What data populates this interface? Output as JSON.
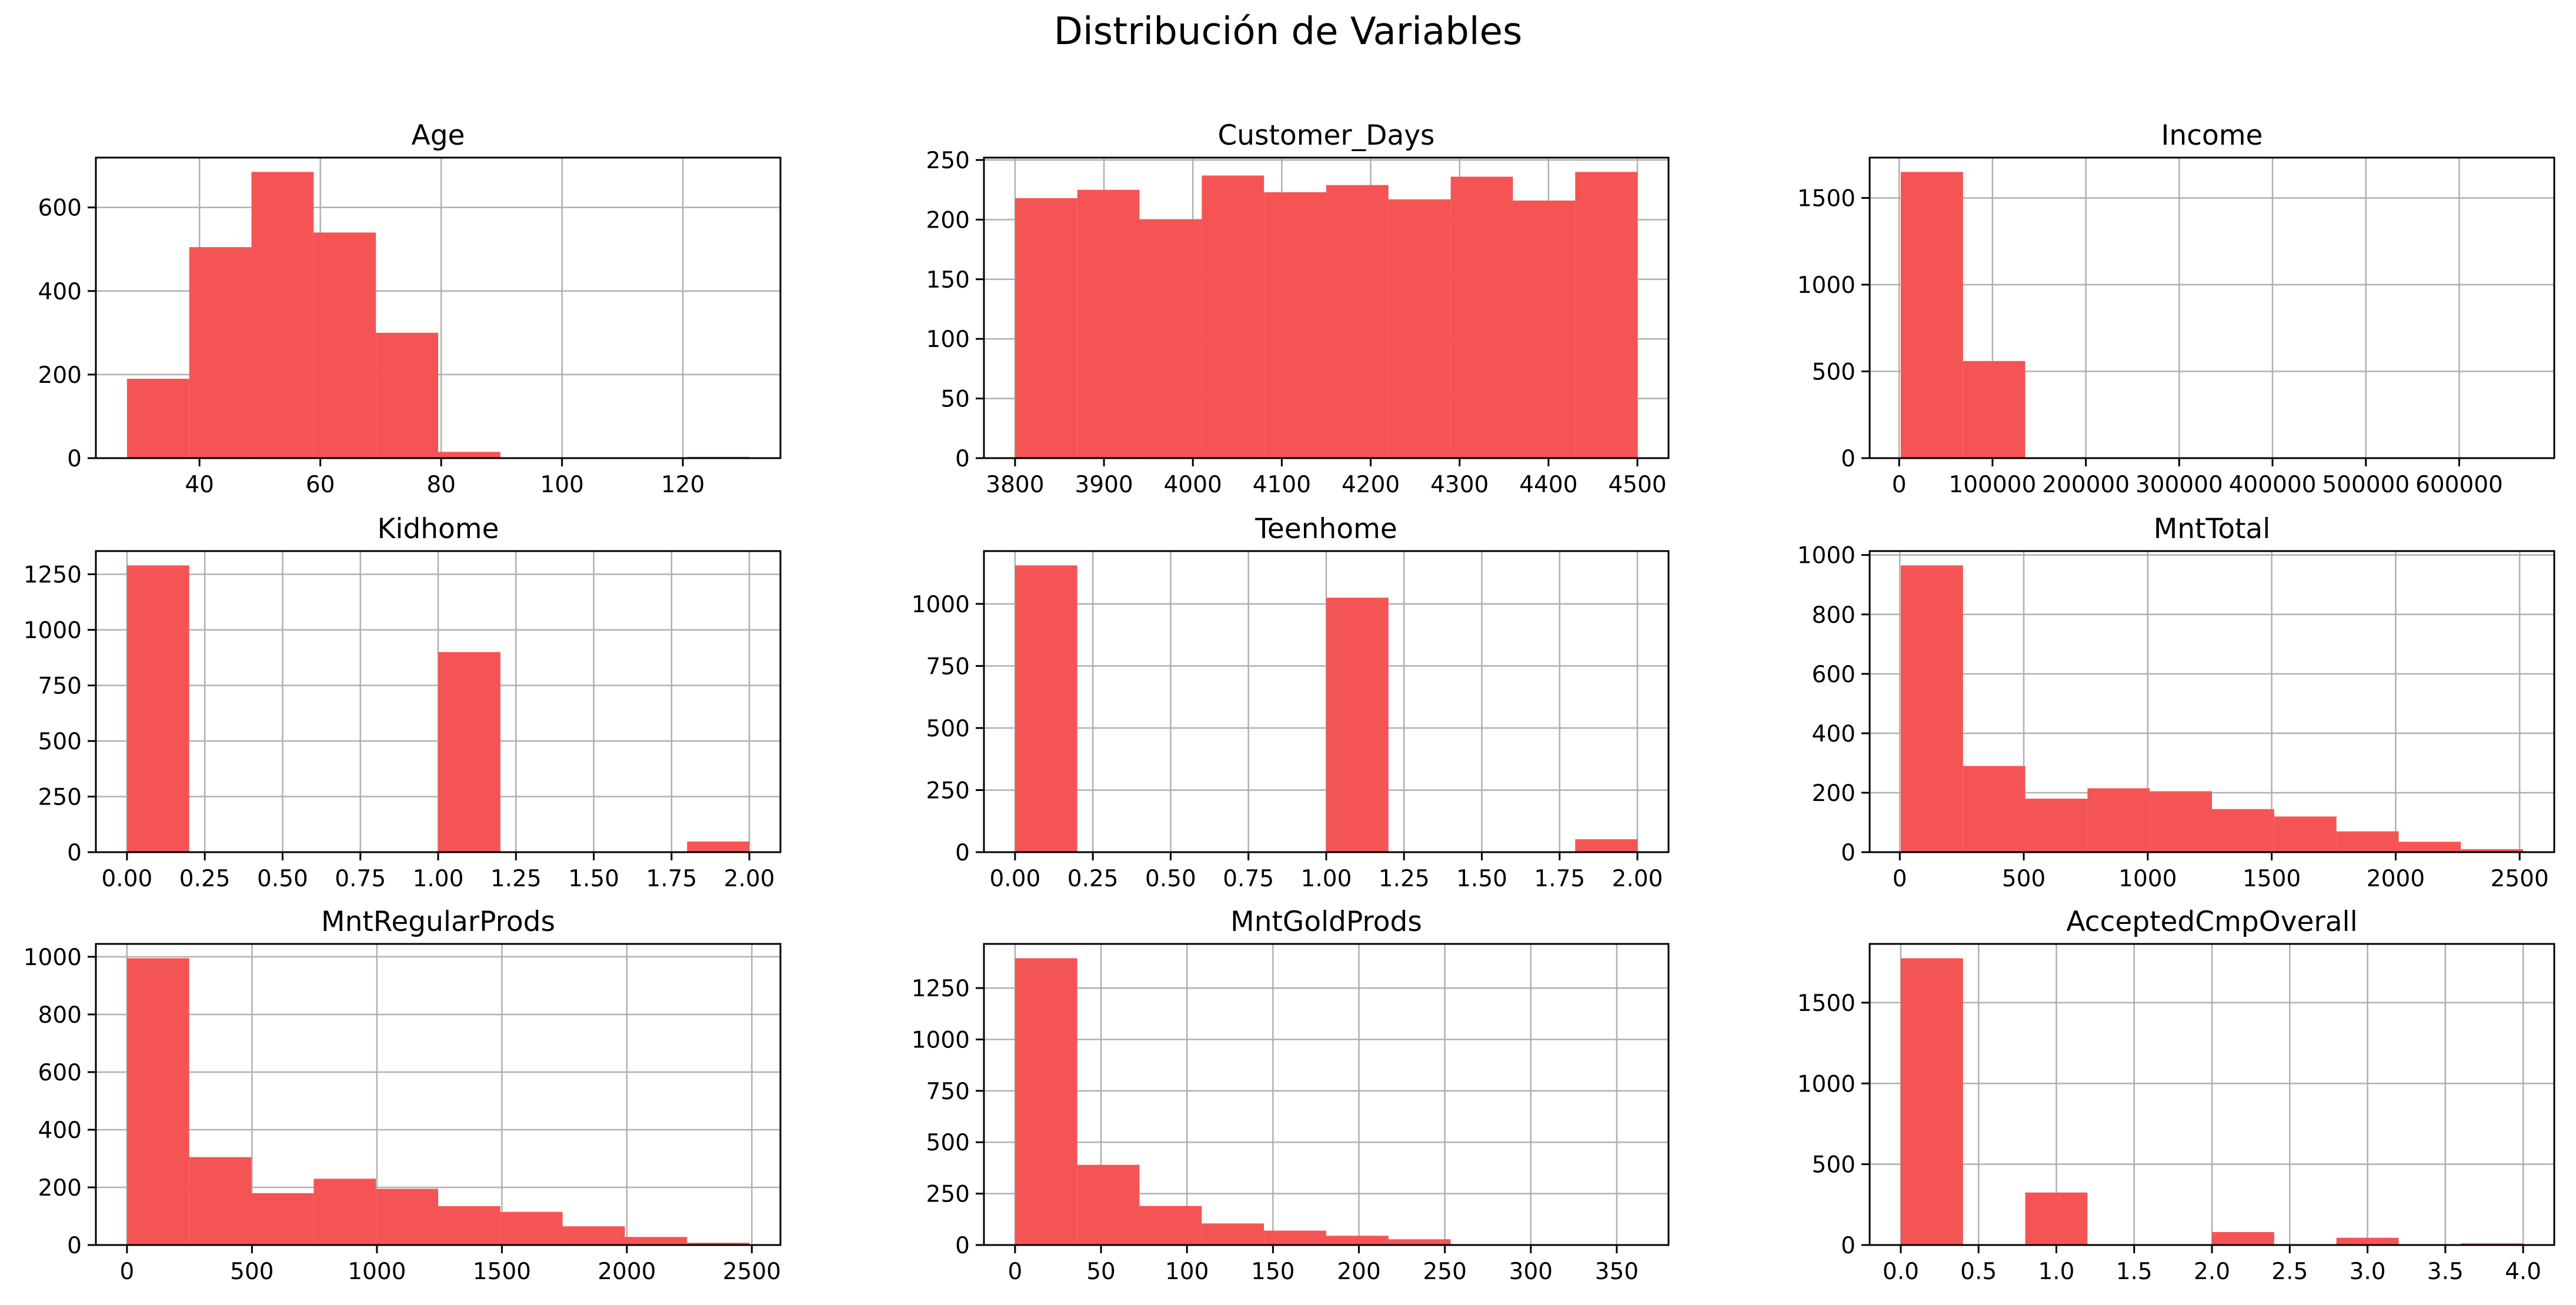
{
  "figure": {
    "suptitle": "Distribución de Variables",
    "bar_color": "#f55455",
    "grid_color": "#b0b0b0"
  },
  "chart_data": [
    {
      "type": "bar",
      "title": "Age",
      "bin_edges": [
        28.0,
        38.3,
        48.6,
        58.9,
        69.2,
        79.5,
        89.8,
        100.1,
        110.4,
        120.7,
        131.0
      ],
      "values": [
        190,
        505,
        685,
        540,
        300,
        15,
        0,
        0,
        0,
        3
      ],
      "xlim": [
        22.85,
        136.15
      ],
      "ylim": [
        0,
        719.25
      ],
      "xticks": [
        40,
        60,
        80,
        100,
        120
      ],
      "yticks": [
        0,
        200,
        400,
        600
      ],
      "grid": true
    },
    {
      "type": "bar",
      "title": "Customer_Days",
      "bin_edges": [
        3800,
        3870,
        3940,
        4010,
        4080,
        4150,
        4220,
        4290,
        4360,
        4430,
        4500
      ],
      "values": [
        218,
        225,
        200,
        237,
        223,
        229,
        217,
        236,
        216,
        240
      ],
      "xlim": [
        3765,
        4535
      ],
      "ylim": [
        0,
        252
      ],
      "xticks": [
        3800,
        3900,
        4000,
        4100,
        4200,
        4300,
        4400,
        4500
      ],
      "yticks": [
        0,
        50,
        100,
        150,
        200,
        250
      ],
      "grid": true
    },
    {
      "type": "bar",
      "title": "Income",
      "bin_edges": [
        1730,
        68403,
        135076,
        201749,
        268422,
        335095,
        401768,
        468441,
        535114,
        601787,
        668460
      ],
      "values": [
        1650,
        560,
        2,
        0,
        0,
        0,
        0,
        0,
        0,
        1
      ],
      "xlim": [
        -31607,
        701797
      ],
      "ylim": [
        0,
        1732.5
      ],
      "xticks": [
        0,
        100000,
        200000,
        300000,
        400000,
        500000,
        600000
      ],
      "yticks": [
        0,
        500,
        1000,
        1500
      ],
      "grid": true
    },
    {
      "type": "bar",
      "title": "Kidhome",
      "bin_edges": [
        0.0,
        0.2,
        0.4,
        0.6,
        0.8,
        1.0,
        1.2,
        1.4,
        1.6,
        1.8,
        2.0
      ],
      "values": [
        1290,
        0,
        0,
        0,
        0,
        900,
        0,
        0,
        0,
        48
      ],
      "xlim": [
        -0.1,
        2.1
      ],
      "ylim": [
        0,
        1354.5
      ],
      "xticks": [
        0.0,
        0.25,
        0.5,
        0.75,
        1.0,
        1.25,
        1.5,
        1.75,
        2.0
      ],
      "xticklabels": [
        "0.00",
        "0.25",
        "0.50",
        "0.75",
        "1.00",
        "1.25",
        "1.50",
        "1.75",
        "2.00"
      ],
      "yticks": [
        0,
        250,
        500,
        750,
        1000,
        1250
      ],
      "grid": true
    },
    {
      "type": "bar",
      "title": "Teenhome",
      "bin_edges": [
        0.0,
        0.2,
        0.4,
        0.6,
        0.8,
        1.0,
        1.2,
        1.4,
        1.6,
        1.8,
        2.0
      ],
      "values": [
        1155,
        0,
        0,
        0,
        0,
        1025,
        0,
        0,
        0,
        52
      ],
      "xlim": [
        -0.1,
        2.1
      ],
      "ylim": [
        0,
        1212.75
      ],
      "xticks": [
        0.0,
        0.25,
        0.5,
        0.75,
        1.0,
        1.25,
        1.5,
        1.75,
        2.0
      ],
      "xticklabels": [
        "0.00",
        "0.25",
        "0.50",
        "0.75",
        "1.00",
        "1.25",
        "1.50",
        "1.75",
        "2.00"
      ],
      "yticks": [
        0,
        250,
        500,
        750,
        1000
      ],
      "grid": true
    },
    {
      "type": "bar",
      "title": "MntTotal",
      "bin_edges": [
        4,
        255,
        506,
        757,
        1008,
        1259,
        1510,
        1761,
        2012,
        2263,
        2514
      ],
      "values": [
        965,
        290,
        180,
        215,
        205,
        145,
        120,
        70,
        35,
        10
      ],
      "xlim": [
        -121.5,
        2639.5
      ],
      "ylim": [
        0,
        1013.25
      ],
      "xticks": [
        0,
        500,
        1000,
        1500,
        2000,
        2500
      ],
      "yticks": [
        0,
        200,
        400,
        600,
        800,
        1000
      ],
      "grid": true
    },
    {
      "type": "bar",
      "title": "MntRegularProds",
      "bin_edges": [
        0,
        249,
        498,
        747,
        996,
        1245,
        1494,
        1743,
        1992,
        2241,
        2490
      ],
      "values": [
        995,
        305,
        180,
        230,
        195,
        135,
        115,
        65,
        28,
        8
      ],
      "xlim": [
        -124.5,
        2614.5
      ],
      "ylim": [
        0,
        1044.75
      ],
      "xticks": [
        0,
        500,
        1000,
        1500,
        2000,
        2500
      ],
      "yticks": [
        0,
        200,
        400,
        600,
        800,
        1000
      ],
      "grid": true
    },
    {
      "type": "bar",
      "title": "MntGoldProds",
      "bin_edges": [
        0,
        36.2,
        72.4,
        108.6,
        144.8,
        181.0,
        217.2,
        253.4,
        289.6,
        325.8,
        362.0
      ],
      "values": [
        1395,
        390,
        190,
        105,
        70,
        45,
        28,
        3,
        2,
        2
      ],
      "xlim": [
        -18.1,
        380.1
      ],
      "ylim": [
        0,
        1464.75
      ],
      "xticks": [
        0,
        50,
        100,
        150,
        200,
        250,
        300,
        350
      ],
      "yticks": [
        0,
        250,
        500,
        750,
        1000,
        1250
      ],
      "grid": true
    },
    {
      "type": "bar",
      "title": "AcceptedCmpOverall",
      "bin_edges": [
        0.0,
        0.4,
        0.8,
        1.2,
        1.6,
        2.0,
        2.4,
        2.8,
        3.2,
        3.6,
        4.0
      ],
      "values": [
        1775,
        0,
        325,
        0,
        0,
        80,
        0,
        45,
        0,
        10
      ],
      "xlim": [
        -0.2,
        4.2
      ],
      "ylim": [
        0,
        1863.75
      ],
      "xticks": [
        0.0,
        0.5,
        1.0,
        1.5,
        2.0,
        2.5,
        3.0,
        3.5,
        4.0
      ],
      "xticklabels": [
        "0.0",
        "0.5",
        "1.0",
        "1.5",
        "2.0",
        "2.5",
        "3.0",
        "3.5",
        "4.0"
      ],
      "yticks": [
        0,
        500,
        1000,
        1500
      ],
      "grid": true
    }
  ]
}
